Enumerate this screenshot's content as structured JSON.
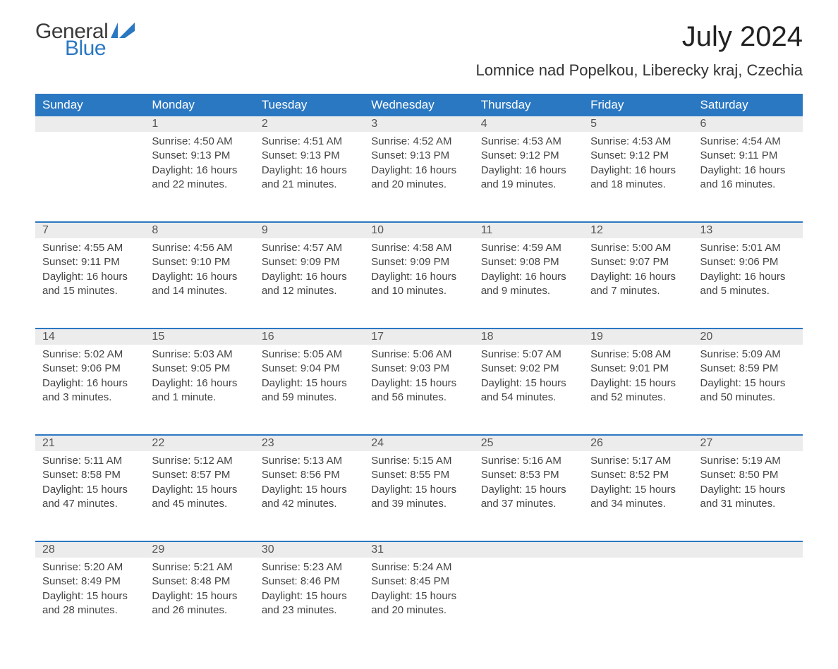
{
  "logo": {
    "word1": "General",
    "word2": "Blue",
    "icon_color": "#2b78c2"
  },
  "title": "July 2024",
  "location": "Lomnice nad Popelkou, Liberecky kraj, Czechia",
  "colors": {
    "header_bg": "#2b78c2",
    "header_text": "#ffffff",
    "daynum_bg": "#ececec",
    "row_border": "#2b78c2",
    "body_text": "#444444",
    "title_text": "#222222"
  },
  "day_headers": [
    "Sunday",
    "Monday",
    "Tuesday",
    "Wednesday",
    "Thursday",
    "Friday",
    "Saturday"
  ],
  "weeks": [
    [
      null,
      {
        "n": "1",
        "sr": "Sunrise: 4:50 AM",
        "ss": "Sunset: 9:13 PM",
        "d1": "Daylight: 16 hours",
        "d2": "and 22 minutes."
      },
      {
        "n": "2",
        "sr": "Sunrise: 4:51 AM",
        "ss": "Sunset: 9:13 PM",
        "d1": "Daylight: 16 hours",
        "d2": "and 21 minutes."
      },
      {
        "n": "3",
        "sr": "Sunrise: 4:52 AM",
        "ss": "Sunset: 9:13 PM",
        "d1": "Daylight: 16 hours",
        "d2": "and 20 minutes."
      },
      {
        "n": "4",
        "sr": "Sunrise: 4:53 AM",
        "ss": "Sunset: 9:12 PM",
        "d1": "Daylight: 16 hours",
        "d2": "and 19 minutes."
      },
      {
        "n": "5",
        "sr": "Sunrise: 4:53 AM",
        "ss": "Sunset: 9:12 PM",
        "d1": "Daylight: 16 hours",
        "d2": "and 18 minutes."
      },
      {
        "n": "6",
        "sr": "Sunrise: 4:54 AM",
        "ss": "Sunset: 9:11 PM",
        "d1": "Daylight: 16 hours",
        "d2": "and 16 minutes."
      }
    ],
    [
      {
        "n": "7",
        "sr": "Sunrise: 4:55 AM",
        "ss": "Sunset: 9:11 PM",
        "d1": "Daylight: 16 hours",
        "d2": "and 15 minutes."
      },
      {
        "n": "8",
        "sr": "Sunrise: 4:56 AM",
        "ss": "Sunset: 9:10 PM",
        "d1": "Daylight: 16 hours",
        "d2": "and 14 minutes."
      },
      {
        "n": "9",
        "sr": "Sunrise: 4:57 AM",
        "ss": "Sunset: 9:09 PM",
        "d1": "Daylight: 16 hours",
        "d2": "and 12 minutes."
      },
      {
        "n": "10",
        "sr": "Sunrise: 4:58 AM",
        "ss": "Sunset: 9:09 PM",
        "d1": "Daylight: 16 hours",
        "d2": "and 10 minutes."
      },
      {
        "n": "11",
        "sr": "Sunrise: 4:59 AM",
        "ss": "Sunset: 9:08 PM",
        "d1": "Daylight: 16 hours",
        "d2": "and 9 minutes."
      },
      {
        "n": "12",
        "sr": "Sunrise: 5:00 AM",
        "ss": "Sunset: 9:07 PM",
        "d1": "Daylight: 16 hours",
        "d2": "and 7 minutes."
      },
      {
        "n": "13",
        "sr": "Sunrise: 5:01 AM",
        "ss": "Sunset: 9:06 PM",
        "d1": "Daylight: 16 hours",
        "d2": "and 5 minutes."
      }
    ],
    [
      {
        "n": "14",
        "sr": "Sunrise: 5:02 AM",
        "ss": "Sunset: 9:06 PM",
        "d1": "Daylight: 16 hours",
        "d2": "and 3 minutes."
      },
      {
        "n": "15",
        "sr": "Sunrise: 5:03 AM",
        "ss": "Sunset: 9:05 PM",
        "d1": "Daylight: 16 hours",
        "d2": "and 1 minute."
      },
      {
        "n": "16",
        "sr": "Sunrise: 5:05 AM",
        "ss": "Sunset: 9:04 PM",
        "d1": "Daylight: 15 hours",
        "d2": "and 59 minutes."
      },
      {
        "n": "17",
        "sr": "Sunrise: 5:06 AM",
        "ss": "Sunset: 9:03 PM",
        "d1": "Daylight: 15 hours",
        "d2": "and 56 minutes."
      },
      {
        "n": "18",
        "sr": "Sunrise: 5:07 AM",
        "ss": "Sunset: 9:02 PM",
        "d1": "Daylight: 15 hours",
        "d2": "and 54 minutes."
      },
      {
        "n": "19",
        "sr": "Sunrise: 5:08 AM",
        "ss": "Sunset: 9:01 PM",
        "d1": "Daylight: 15 hours",
        "d2": "and 52 minutes."
      },
      {
        "n": "20",
        "sr": "Sunrise: 5:09 AM",
        "ss": "Sunset: 8:59 PM",
        "d1": "Daylight: 15 hours",
        "d2": "and 50 minutes."
      }
    ],
    [
      {
        "n": "21",
        "sr": "Sunrise: 5:11 AM",
        "ss": "Sunset: 8:58 PM",
        "d1": "Daylight: 15 hours",
        "d2": "and 47 minutes."
      },
      {
        "n": "22",
        "sr": "Sunrise: 5:12 AM",
        "ss": "Sunset: 8:57 PM",
        "d1": "Daylight: 15 hours",
        "d2": "and 45 minutes."
      },
      {
        "n": "23",
        "sr": "Sunrise: 5:13 AM",
        "ss": "Sunset: 8:56 PM",
        "d1": "Daylight: 15 hours",
        "d2": "and 42 minutes."
      },
      {
        "n": "24",
        "sr": "Sunrise: 5:15 AM",
        "ss": "Sunset: 8:55 PM",
        "d1": "Daylight: 15 hours",
        "d2": "and 39 minutes."
      },
      {
        "n": "25",
        "sr": "Sunrise: 5:16 AM",
        "ss": "Sunset: 8:53 PM",
        "d1": "Daylight: 15 hours",
        "d2": "and 37 minutes."
      },
      {
        "n": "26",
        "sr": "Sunrise: 5:17 AM",
        "ss": "Sunset: 8:52 PM",
        "d1": "Daylight: 15 hours",
        "d2": "and 34 minutes."
      },
      {
        "n": "27",
        "sr": "Sunrise: 5:19 AM",
        "ss": "Sunset: 8:50 PM",
        "d1": "Daylight: 15 hours",
        "d2": "and 31 minutes."
      }
    ],
    [
      {
        "n": "28",
        "sr": "Sunrise: 5:20 AM",
        "ss": "Sunset: 8:49 PM",
        "d1": "Daylight: 15 hours",
        "d2": "and 28 minutes."
      },
      {
        "n": "29",
        "sr": "Sunrise: 5:21 AM",
        "ss": "Sunset: 8:48 PM",
        "d1": "Daylight: 15 hours",
        "d2": "and 26 minutes."
      },
      {
        "n": "30",
        "sr": "Sunrise: 5:23 AM",
        "ss": "Sunset: 8:46 PM",
        "d1": "Daylight: 15 hours",
        "d2": "and 23 minutes."
      },
      {
        "n": "31",
        "sr": "Sunrise: 5:24 AM",
        "ss": "Sunset: 8:45 PM",
        "d1": "Daylight: 15 hours",
        "d2": "and 20 minutes."
      },
      null,
      null,
      null
    ]
  ]
}
